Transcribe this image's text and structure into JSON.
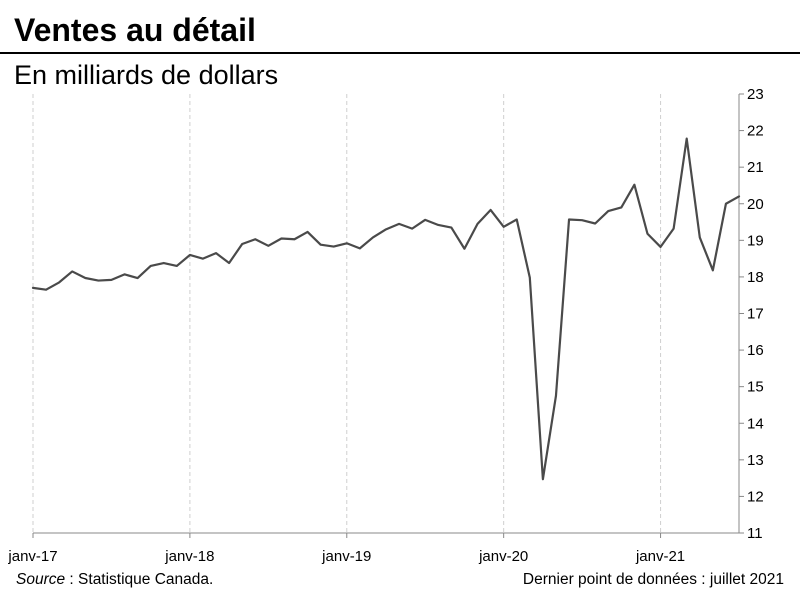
{
  "header": {
    "title": "Ventes au détail",
    "subtitle": "En milliards de dollars"
  },
  "footer": {
    "source_label": "Source",
    "source_text": " : Statistique Canada.",
    "last_point": "Dernier point de données : juillet 2021"
  },
  "chart_data": {
    "type": "line",
    "title": "Ventes au détail",
    "subtitle": "En milliards de dollars",
    "xlabel": "",
    "ylabel": "",
    "x_tick_labels": [
      "janv-17",
      "janv-18",
      "janv-19",
      "janv-20",
      "janv-21"
    ],
    "x_start": "janv-17",
    "x_end": "juil-21",
    "y_axis_position": "right",
    "ylim": [
      11,
      23
    ],
    "yticks": [
      11,
      12,
      13,
      14,
      15,
      16,
      17,
      18,
      19,
      20,
      21,
      22,
      23
    ],
    "grid": "vertical dashed at January",
    "legend": "none",
    "line_color": "#4a4a4a",
    "series": [
      {
        "values": [
          17.7,
          17.65,
          17.85,
          18.15,
          17.97,
          17.9,
          17.92,
          18.07,
          17.97,
          18.3,
          18.38,
          18.3,
          18.6,
          18.5,
          18.65,
          18.38,
          18.9,
          19.03,
          18.85,
          19.05,
          19.03,
          19.23,
          18.88,
          18.83,
          18.92,
          18.78,
          19.08,
          19.3,
          19.45,
          19.32,
          19.56,
          19.42,
          19.35,
          18.77,
          19.45,
          19.83,
          19.37,
          19.57,
          17.98,
          12.47,
          14.75,
          19.57,
          19.55,
          19.46,
          19.8,
          19.9,
          20.52,
          19.18,
          18.82,
          19.32,
          21.78,
          19.08,
          18.18,
          20.0,
          20.2
        ]
      }
    ]
  }
}
